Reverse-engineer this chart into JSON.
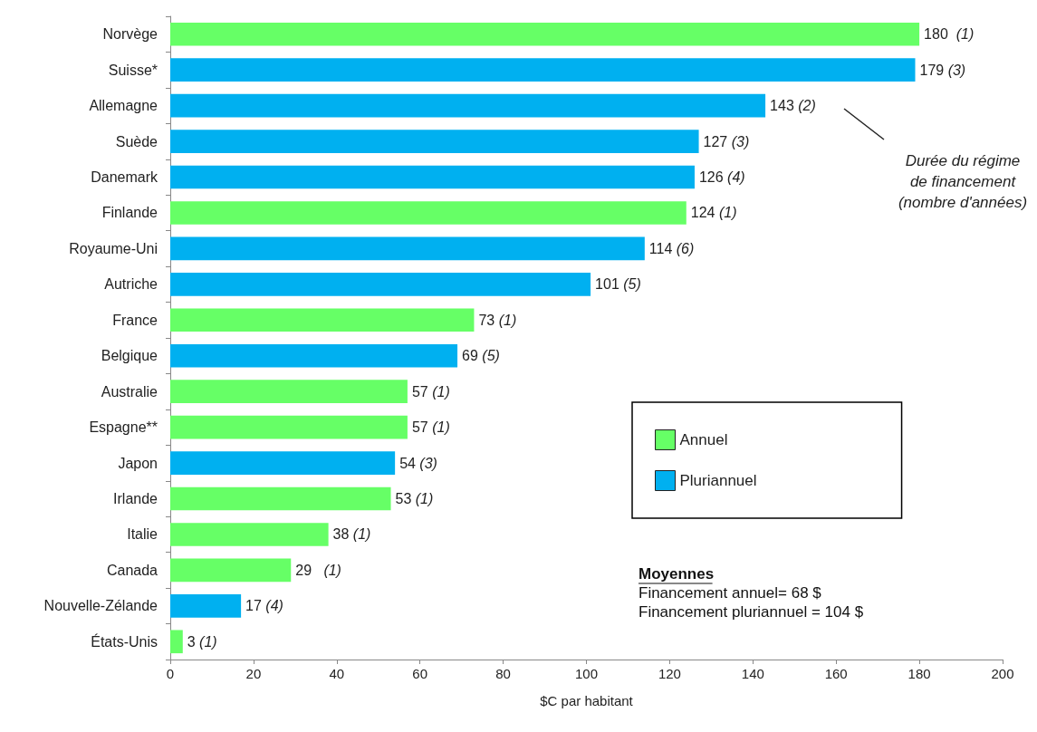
{
  "chart_data": {
    "type": "bar",
    "orientation": "horizontal",
    "xlabel": "$C par habitant",
    "categories": [
      "Norvège",
      "Suisse*",
      "Allemagne",
      "Suède",
      "Danemark",
      "Finlande",
      "Royaume-Uni",
      "Autriche",
      "France",
      "Belgique",
      "Australie",
      "Espagne**",
      "Japon",
      "Irlande",
      "Italie",
      "Canada",
      "Nouvelle-Zélande",
      "États-Unis"
    ],
    "series": [
      {
        "name": "Annuel",
        "color": "#66ff66",
        "values": [
          180,
          null,
          null,
          null,
          null,
          124,
          null,
          null,
          73,
          null,
          57,
          57,
          null,
          53,
          38,
          29,
          null,
          3
        ],
        "value_labels": [
          "180  (1)",
          null,
          null,
          null,
          null,
          "124 (1)",
          null,
          null,
          "73 (1)",
          null,
          "57 (1)",
          "57 (1)",
          null,
          "53 (1)",
          "38 (1)",
          "29   (1)",
          null,
          "3 (1)"
        ]
      },
      {
        "name": "Pluriannuel",
        "color": "#00b0f0",
        "values": [
          null,
          179,
          143,
          127,
          126,
          null,
          114,
          101,
          null,
          69,
          null,
          null,
          54,
          null,
          null,
          null,
          17,
          null
        ],
        "value_labels": [
          null,
          "179 (3)",
          "143 (2)",
          "127 (3)",
          "126 (4)",
          null,
          "114 (6)",
          "101 (5)",
          null,
          "69 (5)",
          null,
          null,
          "54 (3)",
          null,
          null,
          null,
          "17 (4)",
          null
        ]
      }
    ],
    "xlim": [
      0,
      200
    ],
    "xticks": [
      0,
      20,
      40,
      60,
      80,
      100,
      120,
      140,
      160,
      180,
      200
    ],
    "grid": false,
    "legend": "right",
    "annotations": [
      "Durée du régime\nde financement\n(nombre d'années)",
      "Moyennes",
      "Financement annuel= 68 $",
      "Financement pluriannuel = 104 $"
    ]
  }
}
